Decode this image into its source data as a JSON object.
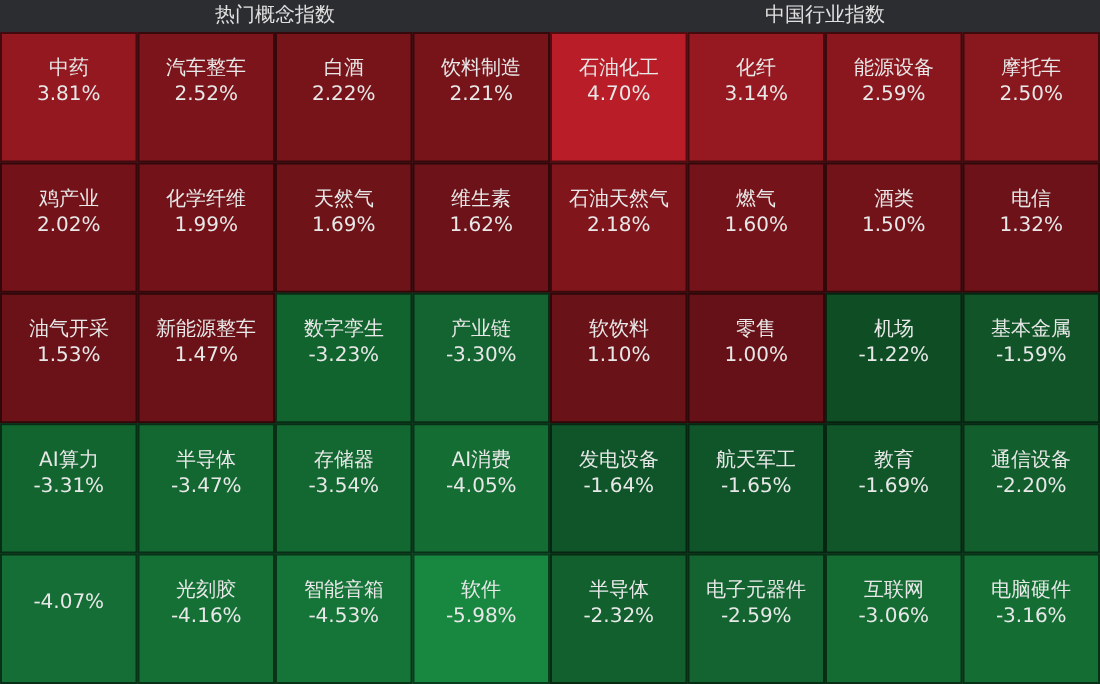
{
  "chart_data": [
    {
      "type": "other",
      "title": "热门概念指数",
      "categories": [
        "中药",
        "汽车整车",
        "白酒",
        "饮料制造",
        "鸡产业",
        "化学纤维",
        "天然气",
        "维生素",
        "油气开采",
        "新能源整车",
        "数字孪生",
        "产业链",
        "AI算力",
        "半导体",
        "存储器",
        "AI消费",
        null,
        "光刻胶",
        "智能音箱",
        "软件"
      ],
      "values": [
        3.81,
        2.52,
        2.22,
        2.21,
        2.02,
        1.99,
        1.69,
        1.62,
        1.53,
        1.47,
        -3.23,
        -3.3,
        -3.31,
        -3.47,
        -3.54,
        -4.05,
        -4.07,
        -4.16,
        -4.53,
        -5.98
      ],
      "value_labels": [
        "3.81%",
        "2.52%",
        "2.22%",
        "2.21%",
        "2.02%",
        "1.99%",
        "1.69%",
        "1.62%",
        "1.53%",
        "1.47%",
        "-3.23%",
        "-3.30%",
        "-3.31%",
        "-3.47%",
        "-3.54%",
        "-4.05%",
        "-4.07%",
        "-4.16%",
        "-4.53%",
        "-5.98%"
      ]
    },
    {
      "type": "other",
      "title": "中国行业指数",
      "categories": [
        "石油化工",
        "化纤",
        "能源设备",
        "摩托车",
        "石油天然气",
        "燃气",
        "酒类",
        "电信",
        "软饮料",
        "零售",
        "机场",
        "基本金属",
        "发电设备",
        "航天军工",
        "教育",
        "通信设备",
        "半导体",
        "电子元器件",
        "互联网",
        "电脑硬件"
      ],
      "values": [
        4.7,
        3.14,
        2.59,
        2.5,
        2.18,
        1.6,
        1.5,
        1.32,
        1.1,
        1.0,
        -1.22,
        -1.59,
        -1.64,
        -1.65,
        -1.69,
        -2.2,
        -2.32,
        -2.59,
        -3.06,
        -3.16
      ],
      "value_labels": [
        "4.70%",
        "3.14%",
        "2.59%",
        "2.50%",
        "2.18%",
        "1.60%",
        "1.50%",
        "1.32%",
        "1.10%",
        "1.00%",
        "-1.22%",
        "-1.59%",
        "-1.64%",
        "-1.65%",
        "-1.69%",
        "-2.20%",
        "-2.32%",
        "-2.59%",
        "-3.06%",
        "-3.16%"
      ]
    }
  ]
}
